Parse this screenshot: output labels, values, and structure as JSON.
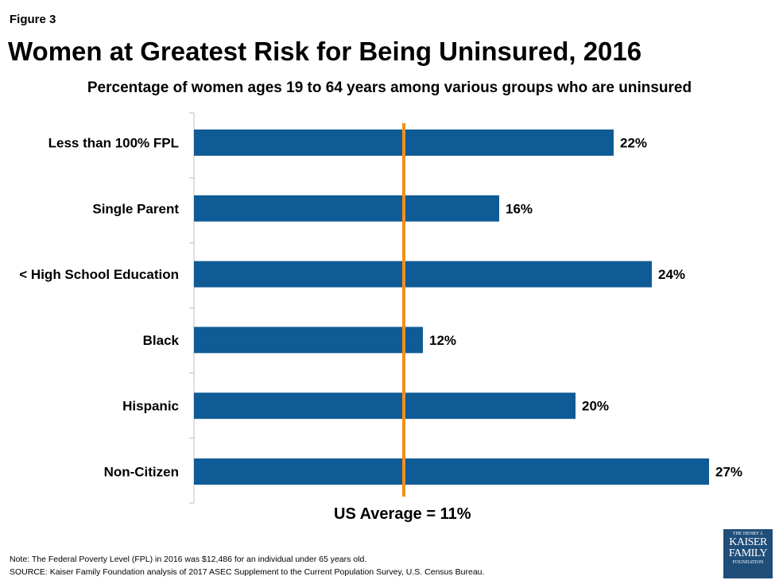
{
  "figure_label": "Figure 3",
  "title": "Women at Greatest Risk for Being Uninsured, 2016",
  "subtitle": "Percentage of women ages 19 to 64 years among various groups who are uninsured",
  "reference_line": {
    "value": 11,
    "label": "US Average = 11%",
    "color": "#f0901e"
  },
  "note": "Note: The Federal Poverty Level (FPL) in 2016 was $12,486 for an individual under 65 years old.",
  "source": "SOURCE: Kaiser Family Foundation analysis of 2017 ASEC Supplement to the Current Population Survey, U.S. Census Bureau.",
  "logo": {
    "line1": "THE HENRY J.",
    "line2": "KAISER",
    "line3": "FAMILY",
    "line4": "FOUNDATION"
  },
  "chart_data": {
    "type": "bar",
    "orientation": "horizontal",
    "categories": [
      "Less than 100% FPL",
      "Single Parent",
      "< High School Education",
      "Black",
      "Hispanic",
      "Non-Citizen"
    ],
    "values": [
      22,
      16,
      24,
      12,
      20,
      27
    ],
    "data_labels": [
      "22%",
      "16%",
      "24%",
      "12%",
      "20%",
      "27%"
    ],
    "unit": "%",
    "bar_color": "#0f5b95",
    "xlim": [
      0,
      27
    ],
    "grid": false,
    "legend": "none"
  }
}
